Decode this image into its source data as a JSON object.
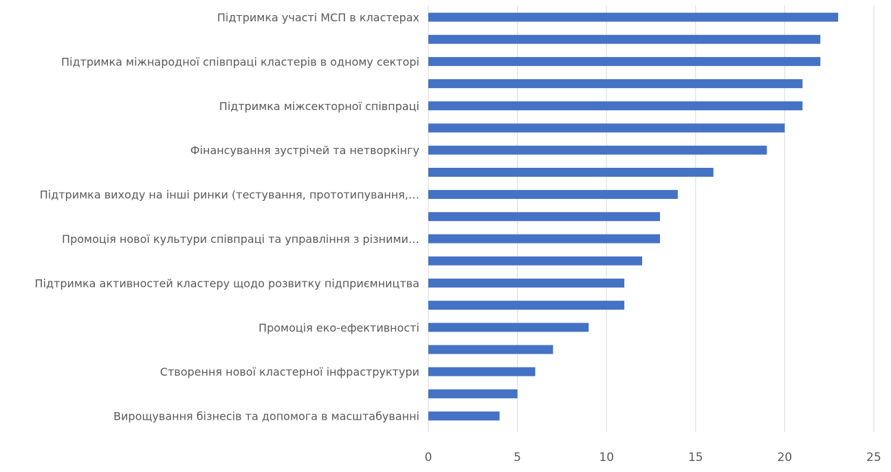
{
  "chart_data": {
    "type": "bar",
    "orientation": "horizontal",
    "title": "",
    "xlabel": "",
    "ylabel": "",
    "xlim": [
      0,
      25
    ],
    "x_ticks": [
      0,
      5,
      10,
      15,
      20,
      25
    ],
    "grid": "vertical",
    "legend": "none",
    "bar_color": "#4472c4",
    "bars": [
      {
        "label": "Підтримка участі МСП в кластерах",
        "value": 23
      },
      {
        "label": "",
        "value": 22
      },
      {
        "label": "Підтримка міжнародної співпраці кластерів в одному секторі",
        "value": 22
      },
      {
        "label": "",
        "value": 21
      },
      {
        "label": "Підтримка міжсекторної співпраці",
        "value": 21
      },
      {
        "label": "",
        "value": 20
      },
      {
        "label": "Фінансування зустрічей та нетворкінгу",
        "value": 19
      },
      {
        "label": "",
        "value": 16
      },
      {
        "label": "Підтримка виходу на інші ринки (тестування, прототипування,…",
        "value": 14
      },
      {
        "label": "",
        "value": 13
      },
      {
        "label": "Промоція нової культури співпраці та управління з різними…",
        "value": 13
      },
      {
        "label": "",
        "value": 12
      },
      {
        "label": "Підтримка активностей кластеру щодо розвитку підприємництва",
        "value": 11
      },
      {
        "label": "",
        "value": 11
      },
      {
        "label": "Промоція еко-ефективності",
        "value": 9
      },
      {
        "label": "",
        "value": 7
      },
      {
        "label": "Створення нової кластерної інфраструктури",
        "value": 6
      },
      {
        "label": "",
        "value": 5
      },
      {
        "label": "Вирощування бізнесів та допомога в масштабуванні",
        "value": 4
      }
    ]
  }
}
